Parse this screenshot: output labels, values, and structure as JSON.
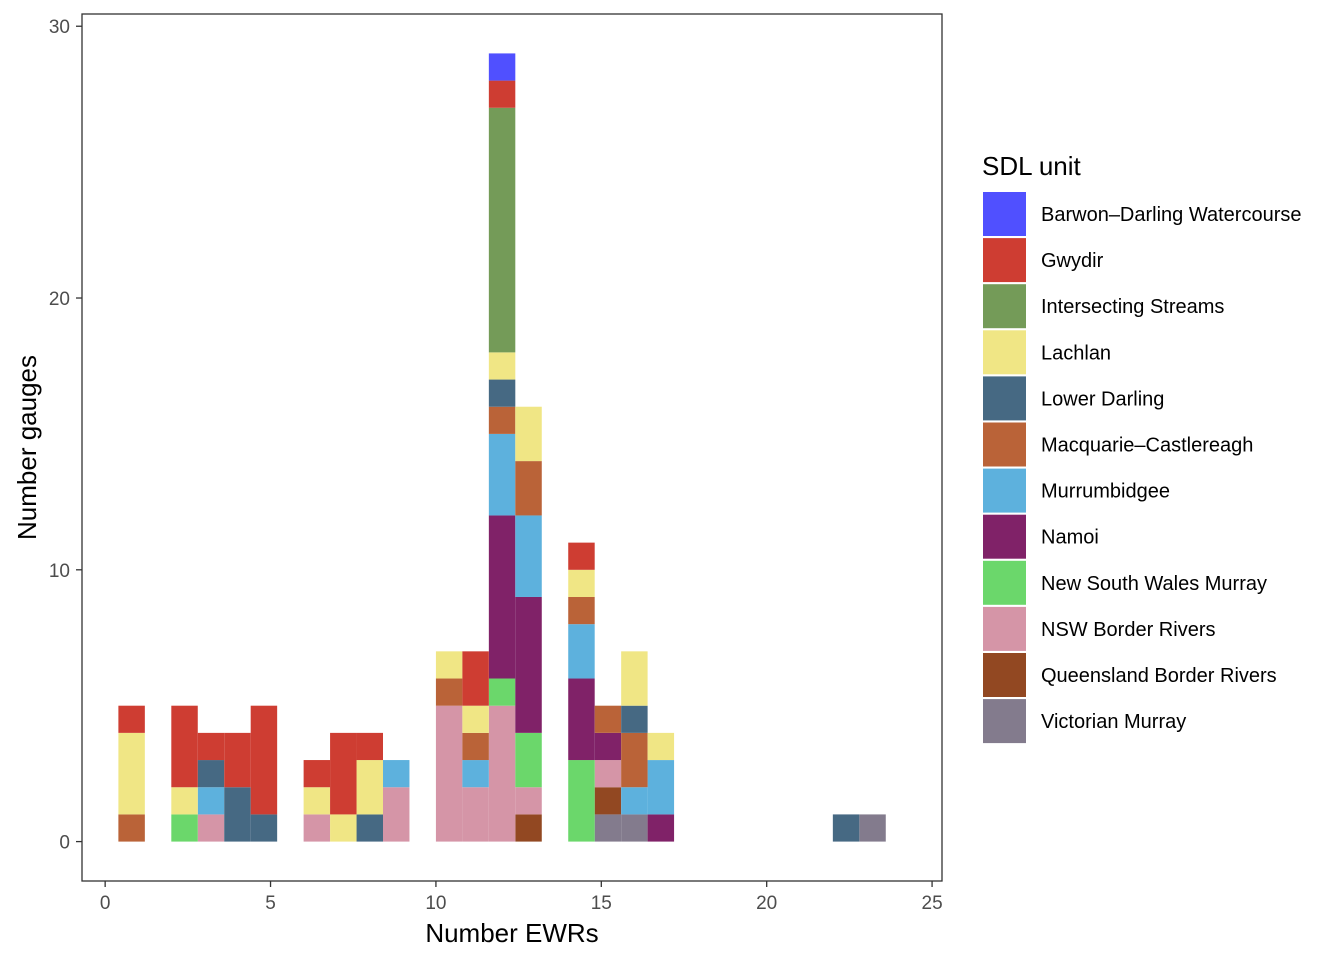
{
  "chart_data": {
    "type": "bar",
    "subtype": "stacked-histogram",
    "binwidth": 0.8,
    "xlabel": "Number EWRs",
    "ylabel": "Number gauges",
    "xlim": [
      -0.7,
      25.3
    ],
    "ylim": [
      -1.45,
      30.45
    ],
    "xticks": [
      0,
      5,
      10,
      15,
      20,
      25
    ],
    "yticks": [
      0,
      10,
      20,
      30
    ],
    "grid": false,
    "legend": {
      "title": "SDL unit",
      "position": "right"
    },
    "series": [
      {
        "name": "Barwon–Darling Watercourse",
        "color": "#5050FF",
        "x": [
          12.0
        ],
        "values": [
          1
        ]
      },
      {
        "name": "Gwydir",
        "color": "#CE3D32",
        "x": [
          0.8,
          2.4,
          3.2,
          4.0,
          4.8,
          6.4,
          7.2,
          8.0,
          11.2,
          12.0,
          14.4
        ],
        "values": [
          1,
          3,
          1,
          2,
          4,
          1,
          3,
          1,
          2,
          1,
          1
        ]
      },
      {
        "name": "Intersecting Streams",
        "color": "#749B58",
        "x": [
          12.0
        ],
        "values": [
          9
        ]
      },
      {
        "name": "Lachlan",
        "color": "#F0E685",
        "x": [
          0.8,
          2.4,
          6.4,
          7.2,
          8.0,
          10.4,
          11.2,
          12.0,
          12.8,
          14.4,
          16.0,
          16.8
        ],
        "values": [
          3,
          1,
          1,
          1,
          2,
          1,
          1,
          1,
          2,
          1,
          2,
          1
        ]
      },
      {
        "name": "Lower Darling",
        "color": "#466983",
        "x": [
          3.2,
          4.0,
          4.8,
          8.0,
          12.0,
          16.0,
          22.4
        ],
        "values": [
          1,
          2,
          1,
          1,
          1,
          1,
          1
        ]
      },
      {
        "name": "Macquarie–Castlereagh",
        "color": "#BA6338",
        "x": [
          0.8,
          10.4,
          11.2,
          12.0,
          12.8,
          14.4,
          15.2,
          16.0
        ],
        "values": [
          1,
          1,
          1,
          1,
          2,
          1,
          1,
          2
        ]
      },
      {
        "name": "Murrumbidgee",
        "color": "#5DB1DD",
        "x": [
          3.2,
          8.8,
          11.2,
          12.0,
          12.8,
          14.4,
          16.0,
          16.8
        ],
        "values": [
          1,
          1,
          1,
          3,
          3,
          2,
          1,
          2
        ]
      },
      {
        "name": "Namoi",
        "color": "#802268",
        "x": [
          12.0,
          12.8,
          14.4,
          15.2,
          16.8
        ],
        "values": [
          6,
          5,
          3,
          1,
          1
        ]
      },
      {
        "name": "New South Wales Murray",
        "color": "#6BD76B",
        "x": [
          2.4,
          12.0,
          12.8,
          14.4
        ],
        "values": [
          1,
          1,
          2,
          3
        ]
      },
      {
        "name": "NSW Border Rivers",
        "color": "#D595A7",
        "x": [
          3.2,
          6.4,
          8.8,
          10.4,
          11.2,
          12.0,
          12.8,
          15.2
        ],
        "values": [
          1,
          1,
          2,
          5,
          2,
          5,
          1,
          1
        ]
      },
      {
        "name": "Queensland Border Rivers",
        "color": "#924822",
        "x": [
          12.8,
          15.2
        ],
        "values": [
          1,
          1
        ]
      },
      {
        "name": "Victorian Murray",
        "color": "#837B8D",
        "x": [
          15.2,
          16.0,
          23.2
        ],
        "values": [
          1,
          1,
          1
        ]
      }
    ]
  }
}
